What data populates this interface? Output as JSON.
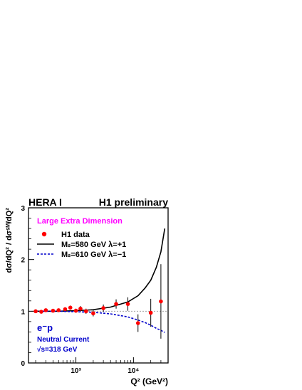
{
  "header": {
    "left": "HERA I",
    "right": "H1 preliminary"
  },
  "annotation": "Large Extra Dimension",
  "beam_info": {
    "process": "e⁻p",
    "channel": "Neutral Current",
    "energy": "√s=318 GeV"
  },
  "colors": {
    "annotation": "#ff00ff",
    "data": "#ff0000",
    "curve_plus": "#000000",
    "curve_minus": "#0000cc",
    "beam_text": "#0000cc"
  },
  "chart_data": {
    "type": "scatter",
    "xscale": "log",
    "xlim": [
      150,
      40000
    ],
    "ylim": [
      0,
      3
    ],
    "xlabel": "Q² (GeV²)",
    "ylabel": "dσ/dQ² / dσˢᴹ/dQ²",
    "yticks": [
      0,
      1,
      2,
      3
    ],
    "xtick_labels": [
      "10³",
      "10⁴"
    ],
    "reference_line": 1,
    "legend": {
      "position": "top-left",
      "entries": [
        {
          "label": "H1 data",
          "style": "marker"
        },
        {
          "label": "Mₛ=580 GeV  λ=+1",
          "style": "solid"
        },
        {
          "label": "Mₛ=610 GeV  λ=−1",
          "style": "dashed"
        }
      ]
    },
    "series": [
      {
        "name": "H1 data",
        "points": [
          {
            "x": 200,
            "y": 1.0,
            "err": 0.02
          },
          {
            "x": 250,
            "y": 0.99,
            "err": 0.02
          },
          {
            "x": 300,
            "y": 1.02,
            "err": 0.02
          },
          {
            "x": 400,
            "y": 1.01,
            "err": 0.02
          },
          {
            "x": 500,
            "y": 1.02,
            "err": 0.03
          },
          {
            "x": 650,
            "y": 1.04,
            "err": 0.03
          },
          {
            "x": 800,
            "y": 1.07,
            "err": 0.04
          },
          {
            "x": 1000,
            "y": 1.01,
            "err": 0.04
          },
          {
            "x": 1200,
            "y": 1.05,
            "err": 0.05
          },
          {
            "x": 1500,
            "y": 1.0,
            "err": 0.05
          },
          {
            "x": 2000,
            "y": 0.96,
            "err": 0.06
          },
          {
            "x": 3000,
            "y": 1.06,
            "err": 0.07
          },
          {
            "x": 5000,
            "y": 1.14,
            "err": 0.09
          },
          {
            "x": 8000,
            "y": 1.14,
            "err": 0.13
          },
          {
            "x": 12000,
            "y": 0.77,
            "err": 0.17
          },
          {
            "x": 20000,
            "y": 0.97,
            "err": 0.27
          },
          {
            "x": 30000,
            "y": 1.19,
            "err": 0.72
          }
        ]
      },
      {
        "name": "Mₛ=580 GeV  λ=+1",
        "points": [
          {
            "x": 200,
            "y": 1.0
          },
          {
            "x": 500,
            "y": 1.0
          },
          {
            "x": 1000,
            "y": 1.01
          },
          {
            "x": 2000,
            "y": 1.03
          },
          {
            "x": 4000,
            "y": 1.08
          },
          {
            "x": 8000,
            "y": 1.18
          },
          {
            "x": 12000,
            "y": 1.3
          },
          {
            "x": 16000,
            "y": 1.45
          },
          {
            "x": 20000,
            "y": 1.6
          },
          {
            "x": 25000,
            "y": 1.85
          },
          {
            "x": 30000,
            "y": 2.15
          },
          {
            "x": 35000,
            "y": 2.6
          }
        ]
      },
      {
        "name": "Mₛ=610 GeV  λ=−1",
        "points": [
          {
            "x": 200,
            "y": 1.0
          },
          {
            "x": 500,
            "y": 1.0
          },
          {
            "x": 1000,
            "y": 0.99
          },
          {
            "x": 2000,
            "y": 0.98
          },
          {
            "x": 4000,
            "y": 0.95
          },
          {
            "x": 8000,
            "y": 0.89
          },
          {
            "x": 12000,
            "y": 0.83
          },
          {
            "x": 16000,
            "y": 0.78
          },
          {
            "x": 20000,
            "y": 0.73
          },
          {
            "x": 25000,
            "y": 0.67
          },
          {
            "x": 30000,
            "y": 0.63
          },
          {
            "x": 35000,
            "y": 0.59
          }
        ]
      }
    ]
  }
}
